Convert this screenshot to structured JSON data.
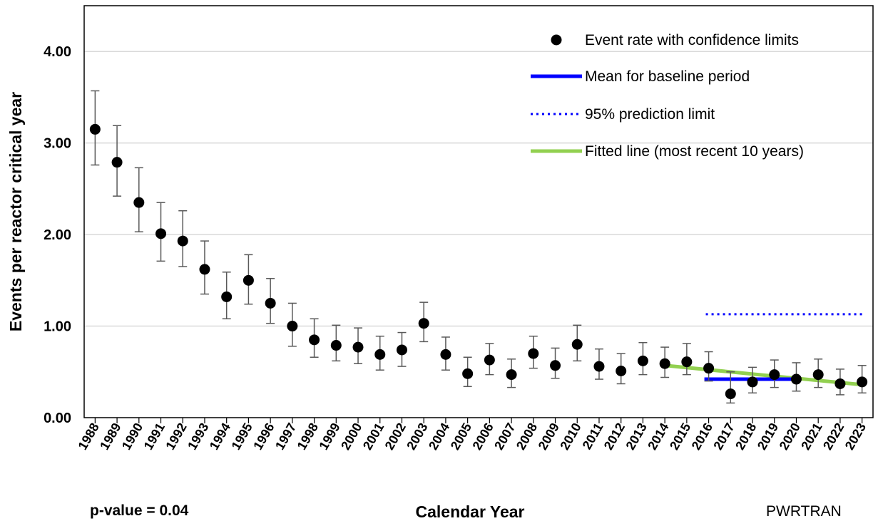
{
  "chart_data": {
    "type": "scatter",
    "title": "",
    "xlabel": "Calendar Year",
    "ylabel": "Events per reactor critical year",
    "ylim": [
      0,
      4.5
    ],
    "yticks": [
      "0.00",
      "1.00",
      "2.00",
      "3.00",
      "4.00"
    ],
    "grid": "horizontal",
    "legend_position": "top-right",
    "categories": [
      "1988",
      "1989",
      "1990",
      "1991",
      "1992",
      "1993",
      "1994",
      "1995",
      "1996",
      "1997",
      "1998",
      "1999",
      "2000",
      "2001",
      "2002",
      "2003",
      "2004",
      "2005",
      "2006",
      "2007",
      "2008",
      "2009",
      "2010",
      "2011",
      "2012",
      "2013",
      "2014",
      "2015",
      "2016",
      "2017",
      "2018",
      "2019",
      "2020",
      "2021",
      "2022",
      "2023"
    ],
    "series": [
      {
        "name": "Event rate with confidence limits",
        "kind": "points-with-error-bars",
        "color": "#000000",
        "values": [
          3.15,
          2.79,
          2.35,
          2.01,
          1.93,
          1.62,
          1.32,
          1.5,
          1.25,
          1.0,
          0.85,
          0.79,
          0.77,
          0.69,
          0.74,
          1.03,
          0.69,
          0.48,
          0.63,
          0.47,
          0.7,
          0.57,
          0.8,
          0.56,
          0.51,
          0.62,
          0.59,
          0.61,
          0.54,
          0.26,
          0.39,
          0.47,
          0.42,
          0.47,
          0.37,
          0.39
        ],
        "lower": [
          2.76,
          2.42,
          2.03,
          1.71,
          1.65,
          1.35,
          1.08,
          1.24,
          1.03,
          0.78,
          0.66,
          0.62,
          0.59,
          0.52,
          0.56,
          0.83,
          0.52,
          0.34,
          0.47,
          0.33,
          0.54,
          0.43,
          0.62,
          0.42,
          0.37,
          0.47,
          0.44,
          0.47,
          0.4,
          0.16,
          0.27,
          0.33,
          0.29,
          0.33,
          0.25,
          0.27
        ],
        "upper": [
          3.57,
          3.19,
          2.73,
          2.35,
          2.26,
          1.93,
          1.59,
          1.78,
          1.52,
          1.25,
          1.08,
          1.01,
          0.98,
          0.89,
          0.93,
          1.26,
          0.88,
          0.66,
          0.81,
          0.64,
          0.89,
          0.76,
          1.01,
          0.75,
          0.7,
          0.82,
          0.77,
          0.81,
          0.72,
          0.5,
          0.55,
          0.63,
          0.6,
          0.64,
          0.53,
          0.57
        ]
      },
      {
        "name": "Mean for baseline period",
        "kind": "line",
        "color": "#0000FF",
        "x": [
          "2016",
          "2023"
        ],
        "values": [
          0.42,
          0.42
        ]
      },
      {
        "name": "95% prediction limit",
        "kind": "dotted-line",
        "color": "#0000FF",
        "x": [
          "2016",
          "2023"
        ],
        "values": [
          1.13,
          1.13
        ]
      },
      {
        "name": "Fitted line (most recent 10 years)",
        "kind": "line",
        "color": "#92D050",
        "x": [
          "2014",
          "2023"
        ],
        "values": [
          0.57,
          0.36
        ]
      }
    ],
    "annotations": {
      "p_value": "p-value = 0.04",
      "source_tag": "PWRTRAN"
    }
  }
}
